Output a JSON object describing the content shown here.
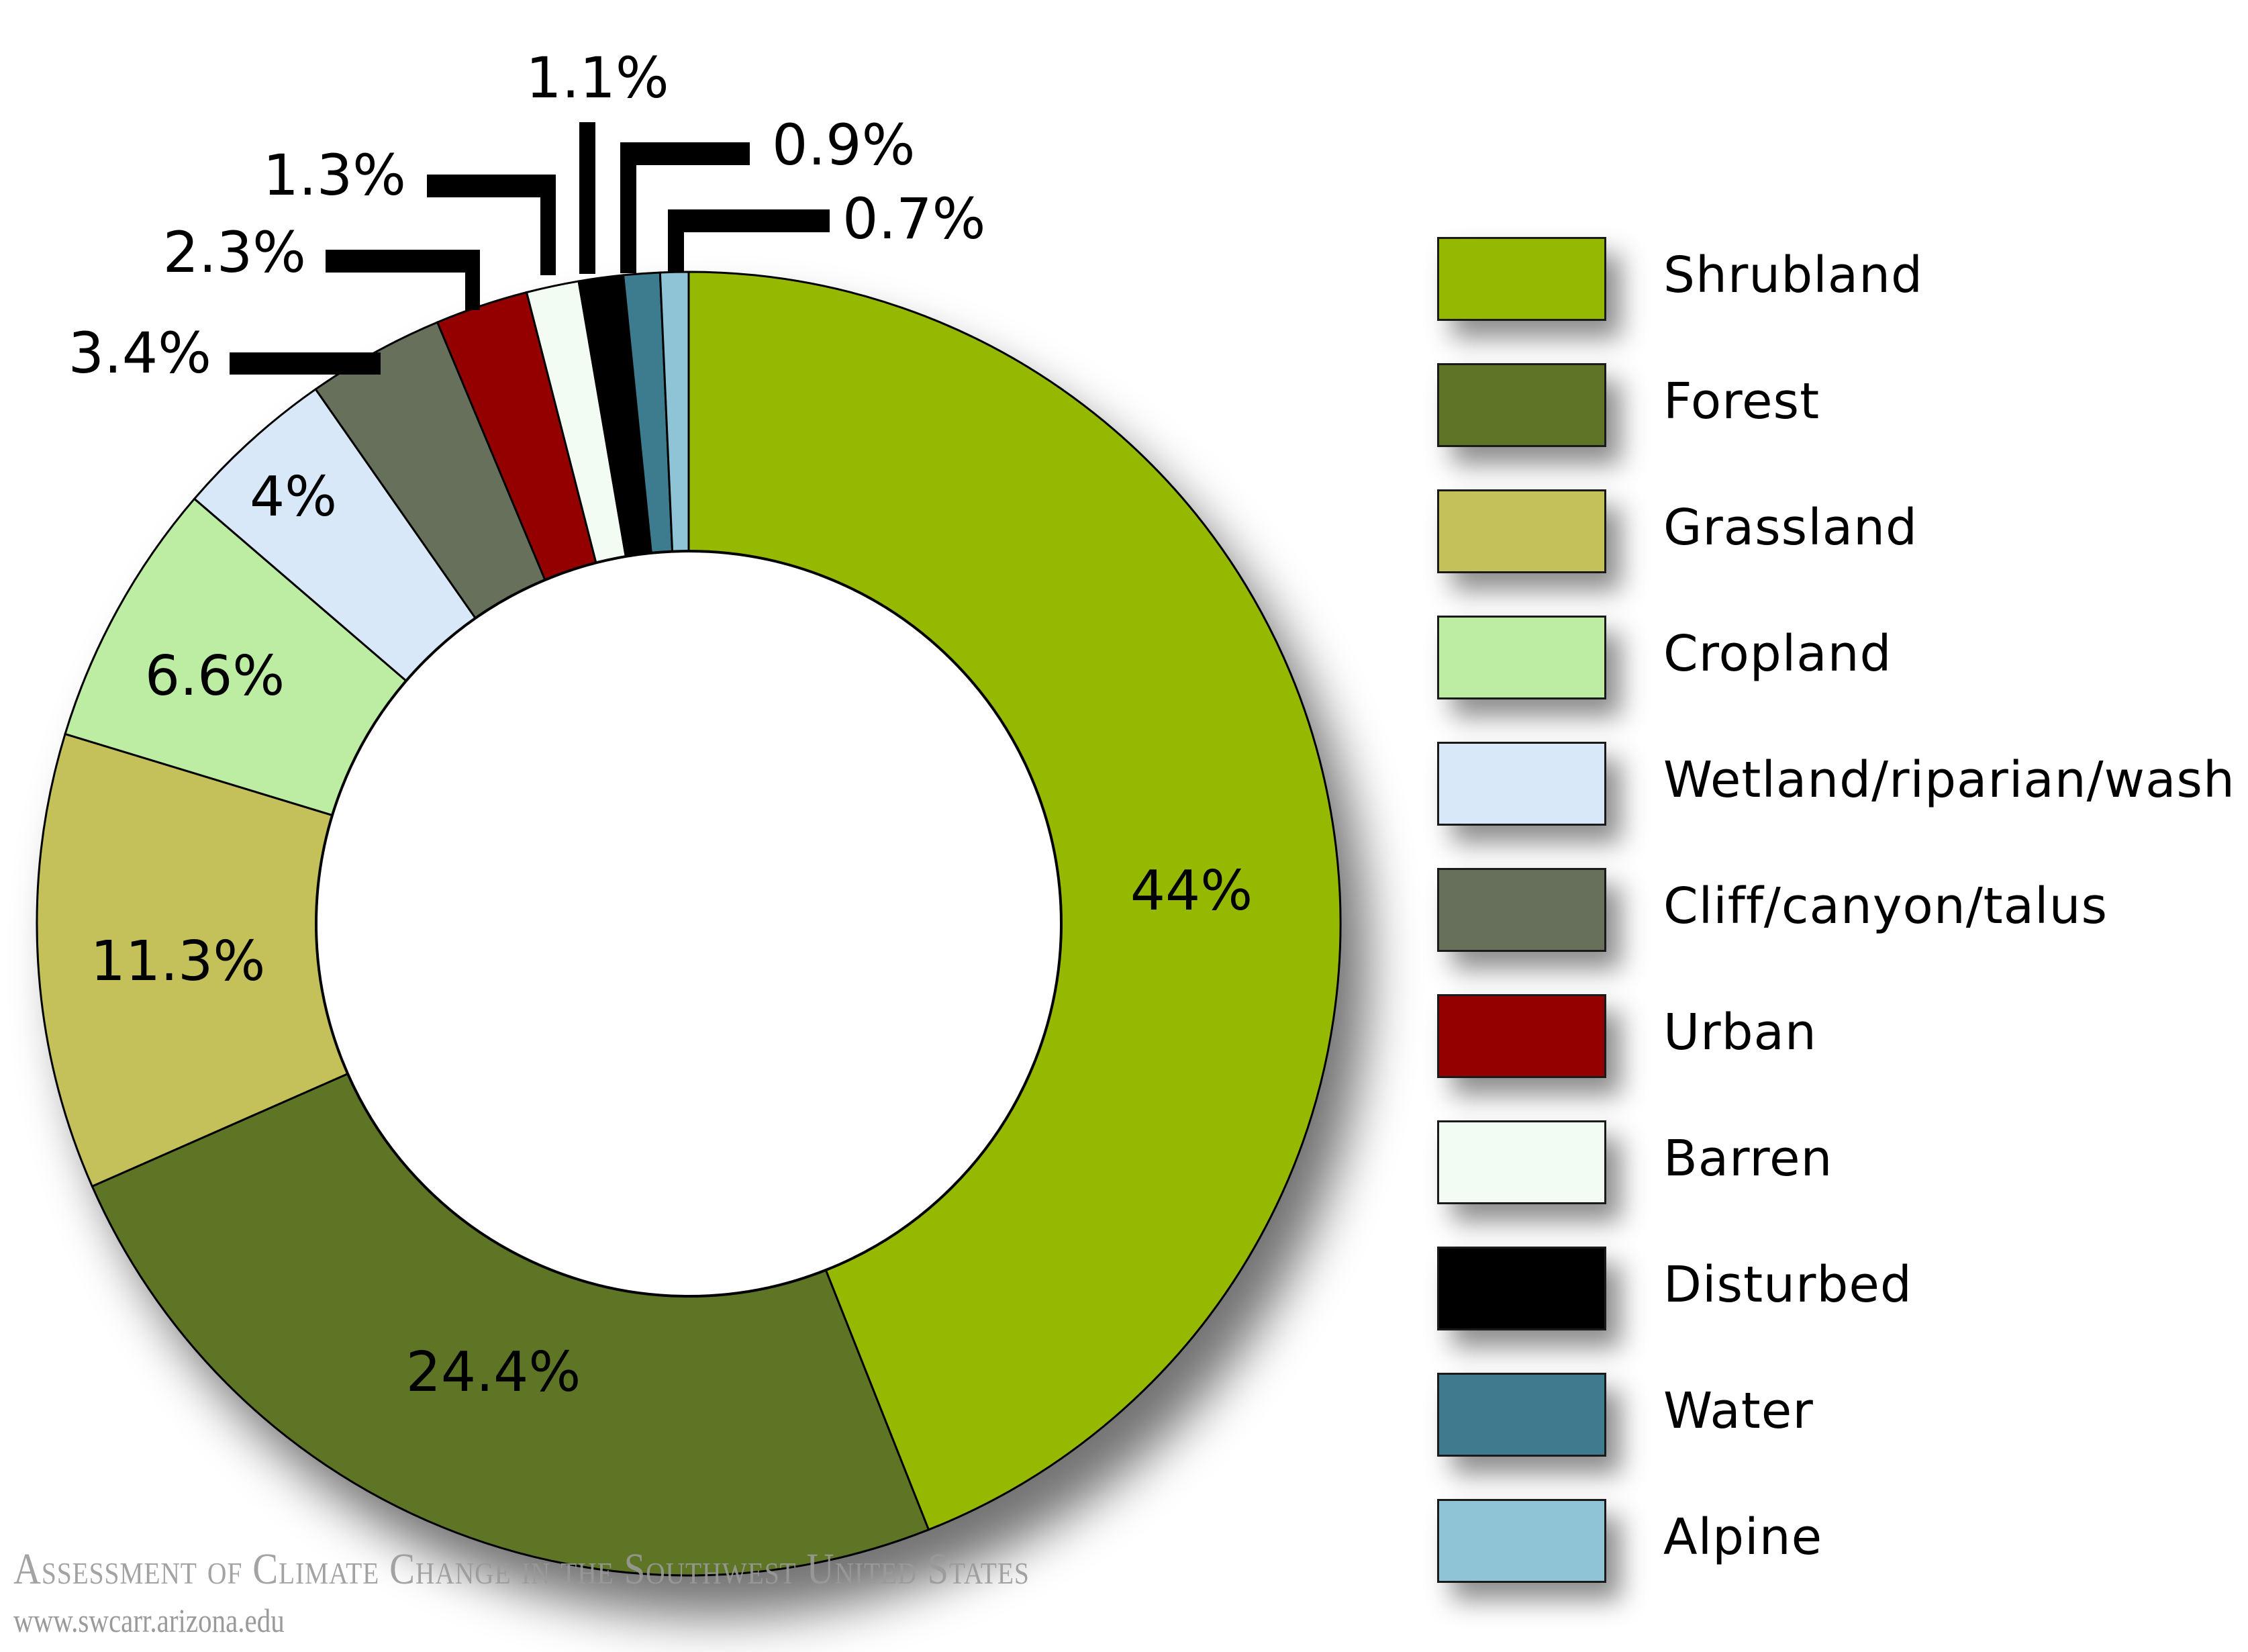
{
  "chart_data": {
    "type": "pie",
    "variant": "donut",
    "title": "",
    "start_angle": "12 o'clock, clockwise",
    "legend_position": "right",
    "categories": [
      "Shrubland",
      "Forest",
      "Grassland",
      "Cropland",
      "Wetland/riparian/wash",
      "Cliff/canyon/talus",
      "Urban",
      "Barren",
      "Disturbed",
      "Water",
      "Alpine"
    ],
    "values": [
      44,
      24.4,
      11.3,
      6.6,
      4,
      3.4,
      2.3,
      1.3,
      1.1,
      0.9,
      0.7
    ],
    "value_labels": [
      "44%",
      "24.4%",
      "11.3%",
      "6.6%",
      "4%",
      "3.4%",
      "2.3%",
      "1.3%",
      "1.1%",
      "0.9%",
      "0.7%"
    ],
    "colors": [
      "#95b900",
      "#5f7427",
      "#c4c15a",
      "#bdeca3",
      "#d8e8f8",
      "#66705a",
      "#940000",
      "#f2fcf3",
      "#000000",
      "#3e7b8f",
      "#8ec4d6"
    ],
    "unit": "%"
  },
  "legend": {
    "items": [
      {
        "label": "Shrubland",
        "color": "#95b900"
      },
      {
        "label": "Forest",
        "color": "#5f7427"
      },
      {
        "label": "Grassland",
        "color": "#c4c15a"
      },
      {
        "label": "Cropland",
        "color": "#bdeca3"
      },
      {
        "label": "Wetland/riparian/wash",
        "color": "#d8e8f8"
      },
      {
        "label": "Cliff/canyon/talus",
        "color": "#66705a"
      },
      {
        "label": "Urban",
        "color": "#940000"
      },
      {
        "label": "Barren",
        "color": "#f2fcf3"
      },
      {
        "label": "Disturbed",
        "color": "#000000"
      },
      {
        "label": "Water",
        "color": "#3e7b8f"
      },
      {
        "label": "Alpine",
        "color": "#8ec4d6"
      }
    ]
  },
  "footer": {
    "title": "Assessment of Climate Change in the Southwest United States",
    "url": "www.swcarr.arizona.edu"
  }
}
